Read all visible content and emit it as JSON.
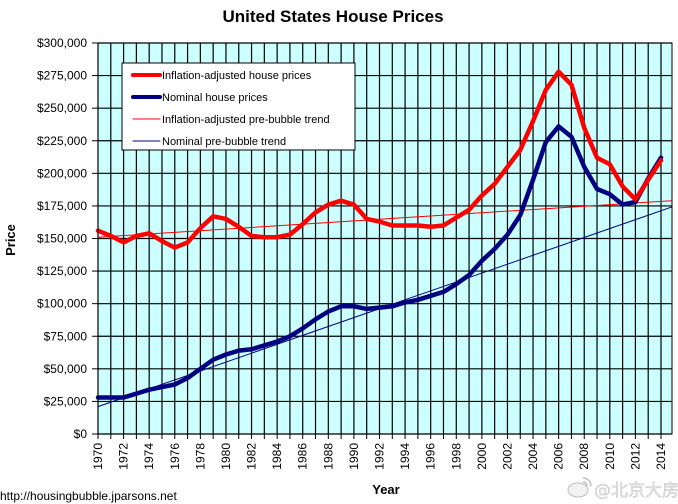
{
  "chart_data": {
    "type": "line",
    "title": "United States House Prices",
    "xlabel": "Year",
    "ylabel": "Price",
    "xlim": [
      1970,
      2015
    ],
    "ylim": [
      0,
      300000
    ],
    "grid": true,
    "grid_vertical": "every year",
    "grid_horizontal": "every $25,000",
    "plot_background": "#ccffff",
    "legend_position": "top-left",
    "y_ticks": [
      0,
      25000,
      50000,
      75000,
      100000,
      125000,
      150000,
      175000,
      200000,
      225000,
      250000,
      275000,
      300000
    ],
    "y_tick_labels": [
      "$0",
      "$25,000",
      "$50,000",
      "$75,000",
      "$100,000",
      "$125,000",
      "$150,000",
      "$175,000",
      "$200,000",
      "$225,000",
      "$250,000",
      "$275,000",
      "$300,000"
    ],
    "x_ticks": [
      1970,
      1972,
      1974,
      1976,
      1978,
      1980,
      1982,
      1984,
      1986,
      1988,
      1990,
      1992,
      1994,
      1996,
      1998,
      2000,
      2002,
      2004,
      2006,
      2008,
      2010,
      2012,
      2014
    ],
    "x_tick_labels": [
      "1970",
      "1972",
      "1974",
      "1976",
      "1978",
      "1980",
      "1982",
      "1984",
      "1986",
      "1988",
      "1990",
      "1992",
      "1994",
      "1996",
      "1998",
      "2000",
      "2002",
      "2004",
      "2006",
      "2008",
      "2010",
      "2012",
      "2014"
    ],
    "x": [
      1970,
      1971,
      1972,
      1973,
      1974,
      1975,
      1976,
      1977,
      1978,
      1979,
      1980,
      1981,
      1982,
      1983,
      1984,
      1985,
      1986,
      1987,
      1988,
      1989,
      1990,
      1991,
      1992,
      1993,
      1994,
      1995,
      1996,
      1997,
      1998,
      1999,
      2000,
      2001,
      2002,
      2003,
      2004,
      2005,
      2006,
      2007,
      2008,
      2009,
      2010,
      2011,
      2012,
      2013,
      2014
    ],
    "series": [
      {
        "name": "Inflation-adjusted house prices",
        "color": "#ff0000",
        "style": "thick",
        "values": [
          156000,
          152000,
          147000,
          152000,
          154000,
          148000,
          143000,
          147000,
          158000,
          167000,
          165000,
          159000,
          152000,
          151000,
          151000,
          153000,
          161000,
          170000,
          176000,
          179000,
          176000,
          165000,
          163000,
          160000,
          160000,
          160000,
          159000,
          160000,
          166000,
          172000,
          183000,
          192000,
          205000,
          218000,
          240000,
          264000,
          278000,
          268000,
          235000,
          212000,
          207000,
          190000,
          180000,
          195000,
          210000
        ]
      },
      {
        "name": "Nominal house prices",
        "color": "#000080",
        "style": "thick",
        "values": [
          28000,
          28000,
          28000,
          31000,
          34000,
          36000,
          38000,
          43000,
          50000,
          57000,
          61000,
          64000,
          65000,
          68000,
          71000,
          75000,
          81000,
          88000,
          94000,
          98000,
          98000,
          96000,
          97000,
          98000,
          101000,
          103000,
          106000,
          109000,
          115000,
          122000,
          133000,
          142000,
          153000,
          168000,
          195000,
          224000,
          236000,
          228000,
          205000,
          188000,
          184000,
          176000,
          178000,
          196000,
          212000
        ]
      },
      {
        "name": "Inflation-adjusted pre-bubble trend",
        "color": "#ff0000",
        "style": "thin",
        "x": [
          1970,
          2014.8
        ],
        "values": [
          151000,
          179000
        ]
      },
      {
        "name": "Nominal pre-bubble trend",
        "color": "#000080",
        "style": "thin",
        "x": [
          1970,
          2014.8
        ],
        "values": [
          21000,
          174000
        ]
      }
    ]
  },
  "source_text": "http://housingbubble.jparsons.net",
  "watermark_text": "@北京大房子"
}
